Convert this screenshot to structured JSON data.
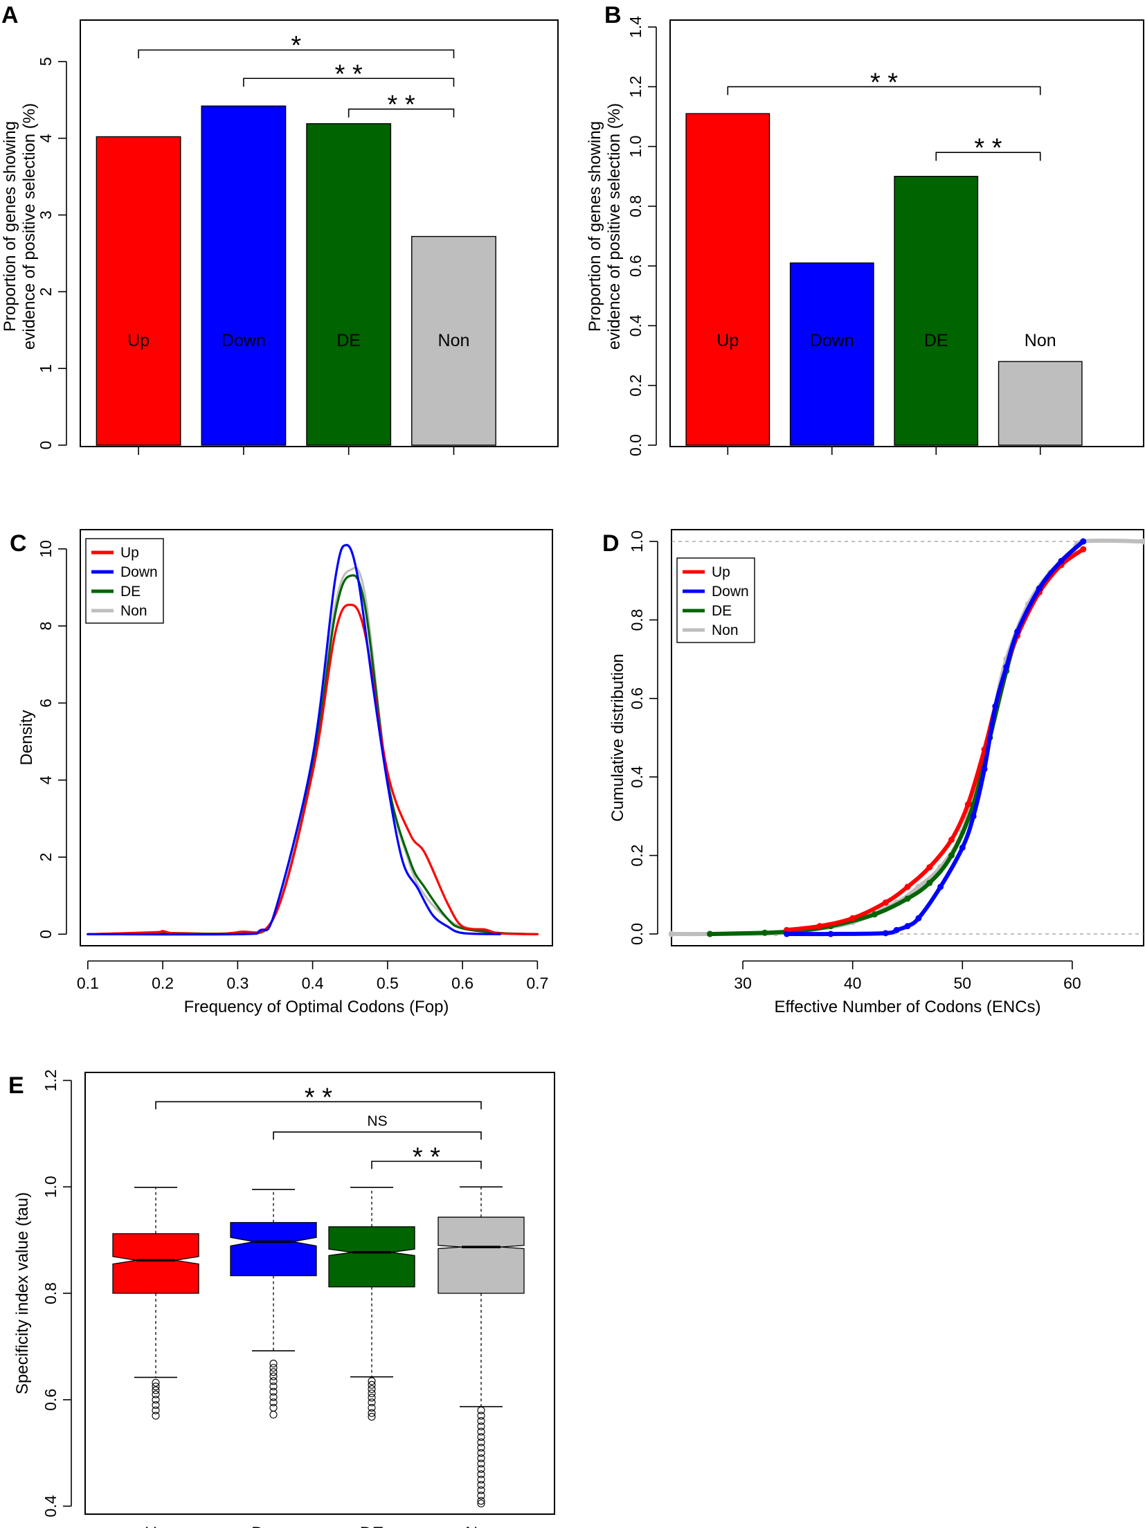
{
  "colors": {
    "Up": "#ff0000",
    "Down": "#0000ff",
    "DE": "#006400",
    "Non": "#bebebe"
  },
  "chart_data": [
    {
      "id": "A",
      "panel_label": "A",
      "type": "bar",
      "categories": [
        "Up",
        "Down",
        "DE",
        "Non"
      ],
      "values": [
        4.02,
        4.42,
        4.19,
        2.72
      ],
      "ylim": [
        0,
        5.45
      ],
      "yticks": [
        0,
        1,
        2,
        3,
        4,
        5
      ],
      "ylabel": [
        "Proportion of genes showing",
        "evidence of positive selection (%)"
      ],
      "xlabel": "",
      "comparisons": [
        {
          "from": "Up",
          "to": "Non",
          "y": 5.15,
          "label": "*"
        },
        {
          "from": "Down",
          "to": "Non",
          "y": 4.78,
          "label": "* *"
        },
        {
          "from": "DE",
          "to": "Non",
          "y": 4.38,
          "label": "* *"
        }
      ]
    },
    {
      "id": "B",
      "panel_label": "B",
      "type": "bar",
      "categories": [
        "Up",
        "Down",
        "DE",
        "Non"
      ],
      "values": [
        1.11,
        0.61,
        0.9,
        0.28
      ],
      "ylim": [
        0,
        1.4
      ],
      "yticks": [
        0.0,
        0.2,
        0.4,
        0.6,
        0.8,
        1.0,
        1.2,
        1.4
      ],
      "ylabel": [
        "Proportion of genes showing",
        "evidence of positive selection (%)"
      ],
      "xlabel": "",
      "comparisons": [
        {
          "from": "Up",
          "to": "Non",
          "y": 1.2,
          "label": "* *"
        },
        {
          "from": "DE",
          "to": "Non",
          "y": 0.98,
          "label": "* *"
        }
      ]
    },
    {
      "id": "C",
      "panel_label": "C",
      "type": "line",
      "xlabel": "Frequency of Optimal Codons (Fop)",
      "ylabel": "Density",
      "xlim": [
        0.09,
        0.72
      ],
      "ylim": [
        -0.3,
        10.5
      ],
      "xticks": [
        0.1,
        0.2,
        0.3,
        0.4,
        0.5,
        0.6,
        0.7
      ],
      "yticks": [
        0,
        2,
        4,
        6,
        8,
        10
      ],
      "legend": {
        "position": "top-left",
        "entries": [
          "Up",
          "Down",
          "DE",
          "Non"
        ]
      },
      "series": [
        {
          "name": "Non",
          "x": [
            0.1,
            0.2,
            0.3,
            0.35,
            0.4,
            0.43,
            0.45,
            0.47,
            0.5,
            0.53,
            0.55,
            0.58,
            0.6,
            0.65,
            0.7
          ],
          "y": [
            0,
            0.03,
            0.05,
            0.5,
            4.5,
            8.5,
            9.45,
            8.8,
            4.0,
            1.8,
            1.0,
            0.4,
            0.2,
            0.03,
            0
          ]
        },
        {
          "name": "DE",
          "x": [
            0.1,
            0.2,
            0.3,
            0.35,
            0.4,
            0.43,
            0.45,
            0.47,
            0.5,
            0.53,
            0.55,
            0.58,
            0.6,
            0.65,
            0.7
          ],
          "y": [
            0,
            0.03,
            0.05,
            0.5,
            4.3,
            8.3,
            9.3,
            8.5,
            4.0,
            1.9,
            1.2,
            0.4,
            0.15,
            0.03,
            0
          ]
        },
        {
          "name": "Up",
          "x": [
            0.1,
            0.19,
            0.2,
            0.22,
            0.3,
            0.35,
            0.4,
            0.43,
            0.45,
            0.47,
            0.5,
            0.53,
            0.55,
            0.58,
            0.6,
            0.63,
            0.65,
            0.7
          ],
          "y": [
            0,
            0.05,
            0.08,
            0.02,
            0.05,
            0.5,
            4.2,
            7.8,
            8.55,
            7.8,
            4.2,
            2.6,
            2.1,
            0.8,
            0.2,
            0.12,
            0.02,
            0
          ]
        },
        {
          "name": "Down",
          "x": [
            0.1,
            0.3,
            0.33,
            0.35,
            0.4,
            0.43,
            0.445,
            0.46,
            0.48,
            0.5,
            0.52,
            0.54,
            0.56,
            0.58,
            0.6,
            0.65
          ],
          "y": [
            0,
            0,
            0.1,
            0.6,
            4.6,
            9.2,
            10.1,
            9.3,
            6.5,
            3.9,
            1.9,
            1.2,
            0.5,
            0.2,
            0.03,
            0
          ]
        }
      ]
    },
    {
      "id": "D",
      "panel_label": "D",
      "type": "line",
      "xlabel": "Effective Number of Codons (ENCs)",
      "ylabel": "Cumulative distribution",
      "xlim": [
        23.5,
        66.5
      ],
      "ylim": [
        -0.03,
        1.03
      ],
      "xticks": [
        30,
        40,
        50,
        60
      ],
      "yticks": [
        0.0,
        0.2,
        0.4,
        0.6,
        0.8,
        1.0
      ],
      "legend": {
        "position": "top-left",
        "entries": [
          "Up",
          "Down",
          "DE",
          "Non"
        ]
      },
      "series": [
        {
          "name": "Non",
          "x": [
            23.5,
            27,
            33,
            36,
            40,
            44,
            46,
            48,
            50,
            52,
            53,
            54,
            56,
            58,
            60,
            61,
            66.5
          ],
          "y": [
            0,
            0,
            0.002,
            0.01,
            0.03,
            0.08,
            0.12,
            0.17,
            0.26,
            0.45,
            0.58,
            0.7,
            0.84,
            0.92,
            0.97,
            1.0,
            1.0
          ]
        },
        {
          "name": "DE",
          "x": [
            27,
            32,
            35,
            38,
            42,
            45,
            47,
            49,
            51,
            52.5,
            54,
            55,
            57,
            59,
            61
          ],
          "y": [
            0,
            0.003,
            0.008,
            0.02,
            0.05,
            0.09,
            0.13,
            0.2,
            0.33,
            0.5,
            0.67,
            0.76,
            0.88,
            0.95,
            1.0
          ]
        },
        {
          "name": "Up",
          "x": [
            34,
            37,
            40,
            43,
            45,
            47,
            49,
            50.5,
            52,
            53,
            54,
            55,
            57,
            59,
            61
          ],
          "y": [
            0.01,
            0.02,
            0.04,
            0.08,
            0.12,
            0.17,
            0.24,
            0.33,
            0.47,
            0.58,
            0.68,
            0.76,
            0.87,
            0.94,
            0.98
          ]
        },
        {
          "name": "Down",
          "x": [
            34,
            38,
            43,
            44,
            45,
            46,
            48,
            50,
            51,
            52,
            53,
            54,
            55,
            57,
            59,
            61
          ],
          "y": [
            0,
            0,
            0.002,
            0.01,
            0.02,
            0.04,
            0.12,
            0.22,
            0.3,
            0.42,
            0.58,
            0.68,
            0.77,
            0.88,
            0.95,
            1.0
          ]
        }
      ]
    },
    {
      "id": "E",
      "panel_label": "E",
      "type": "box",
      "categories": [
        "Up",
        "Down",
        "DE",
        "Non"
      ],
      "ylabel": "Specificity index value (tau)",
      "xlabel": "",
      "ylim": [
        0.385,
        1.215
      ],
      "yticks": [
        0.4,
        0.6,
        0.8,
        1.0,
        1.2
      ],
      "boxes": [
        {
          "name": "Up",
          "q1": 0.8,
          "median": 0.862,
          "q3": 0.912,
          "notch_lo": 0.855,
          "notch_hi": 0.869,
          "whisker_lo": 0.642,
          "whisker_hi": 0.999,
          "outliers": [
            0.632,
            0.625,
            0.618,
            0.61,
            0.6,
            0.59,
            0.58,
            0.57
          ]
        },
        {
          "name": "Down",
          "q1": 0.833,
          "median": 0.897,
          "q3": 0.933,
          "notch_lo": 0.889,
          "notch_hi": 0.905,
          "whisker_lo": 0.692,
          "whisker_hi": 0.995,
          "outliers": [
            0.668,
            0.66,
            0.652,
            0.644,
            0.635,
            0.625,
            0.615,
            0.605,
            0.595,
            0.585,
            0.572
          ]
        },
        {
          "name": "DE",
          "q1": 0.812,
          "median": 0.877,
          "q3": 0.925,
          "notch_lo": 0.871,
          "notch_hi": 0.883,
          "whisker_lo": 0.643,
          "whisker_hi": 0.999,
          "outliers": [
            0.635,
            0.628,
            0.62,
            0.612,
            0.604,
            0.595,
            0.585,
            0.575,
            0.568
          ]
        },
        {
          "name": "Non",
          "q1": 0.8,
          "median": 0.887,
          "q3": 0.943,
          "notch_lo": 0.884,
          "notch_hi": 0.89,
          "whisker_lo": 0.587,
          "whisker_hi": 1.0,
          "outliers": [
            0.58,
            0.57,
            0.56,
            0.55,
            0.54,
            0.53,
            0.52,
            0.51,
            0.5,
            0.49,
            0.48,
            0.47,
            0.46,
            0.45,
            0.44,
            0.43,
            0.42,
            0.41,
            0.405
          ]
        }
      ],
      "comparisons": [
        {
          "from": "Up",
          "to": "Non",
          "y": 1.16,
          "label": "* *"
        },
        {
          "from": "Down",
          "to": "Non",
          "y": 1.103,
          "label": "NS"
        },
        {
          "from": "DE",
          "to": "Non",
          "y": 1.048,
          "label": "* *"
        }
      ]
    }
  ]
}
